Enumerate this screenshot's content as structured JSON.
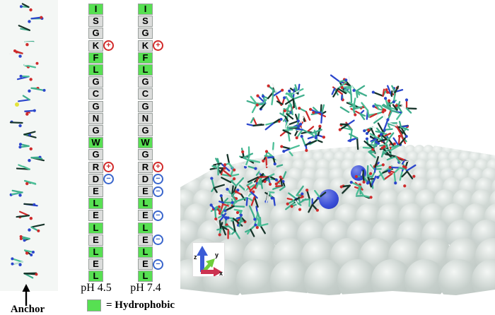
{
  "left_panel": {
    "anchor_label": "Anchor"
  },
  "sequence": {
    "residues": [
      "I",
      "S",
      "G",
      "K",
      "F",
      "L",
      "G",
      "C",
      "G",
      "N",
      "G",
      "W",
      "G",
      "R",
      "D",
      "E",
      "L",
      "E",
      "L",
      "E",
      "L",
      "E",
      "L"
    ],
    "hydrophobic_indices": [
      0,
      4,
      5,
      11,
      16,
      18,
      20,
      22
    ],
    "columns": [
      {
        "id": "ph45",
        "label": "pH 4.5",
        "plus": [
          3,
          13
        ],
        "minus": [
          14
        ]
      },
      {
        "id": "ph74",
        "label": "pH 7.4",
        "plus": [
          3,
          13
        ],
        "minus": [
          14,
          15,
          17,
          19,
          21
        ]
      }
    ],
    "charge_symbols": {
      "plus": "+",
      "minus": "−"
    }
  },
  "legend": {
    "text": "= Hydrophobic",
    "swatch_color": "#57e052"
  },
  "scene": {
    "axis_labels": {
      "x": "x",
      "y": "y",
      "z": "z"
    }
  },
  "colors": {
    "hydrophobic": "#57e052",
    "cell_bg": "#dcdddc",
    "cell_border": "#9aa09d",
    "plus_circle": "#d22b2b",
    "minus_circle": "#3a66cc",
    "ion_blue": "#2f44cc",
    "surface_sphere": "#c6cfcb",
    "carbon_teal": "#3fae8c",
    "oxygen_red": "#cf2b2b",
    "nitrogen_blue": "#2b46cc",
    "sulfur_yellow": "#e3e33c"
  }
}
